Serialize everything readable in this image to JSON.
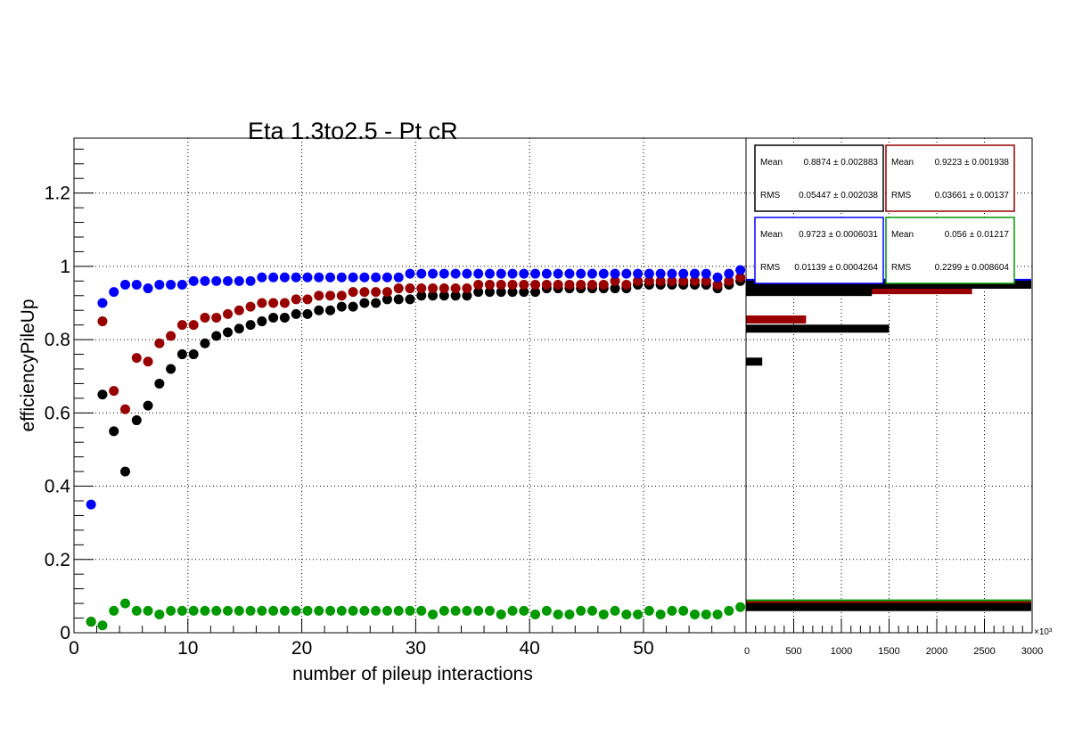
{
  "chart_data": [
    {
      "type": "scatter",
      "title": "Eta 1.3to2.5 - Pt cR",
      "xlabel": "number of pileup interactions",
      "ylabel": "efficiencyPileUp",
      "xlim": [
        0,
        59
      ],
      "ylim": [
        0,
        1.35
      ],
      "grid": true,
      "x_ticks": [
        "0",
        "10",
        "20",
        "30",
        "40",
        "50"
      ],
      "y_ticks": [
        "0",
        "0.2",
        "0.4",
        "0.6",
        "0.8",
        "1",
        "1.2"
      ],
      "colors": {
        "black": "#000000",
        "red": "#990000",
        "blue": "#0000ff",
        "green": "#009900"
      },
      "x": [
        1.5,
        2.5,
        3.5,
        4.5,
        5.5,
        6.5,
        7.5,
        8.5,
        9.5,
        10.5,
        11.5,
        12.5,
        13.5,
        14.5,
        15.5,
        16.5,
        17.5,
        18.5,
        19.5,
        20.5,
        21.5,
        22.5,
        23.5,
        24.5,
        25.5,
        26.5,
        27.5,
        28.5,
        29.5,
        30.5,
        31.5,
        32.5,
        33.5,
        34.5,
        35.5,
        36.5,
        37.5,
        38.5,
        39.5,
        40.5,
        41.5,
        42.5,
        43.5,
        44.5,
        45.5,
        46.5,
        47.5,
        48.5,
        49.5,
        50.5,
        51.5,
        52.5,
        53.5,
        54.5,
        55.5,
        56.5,
        57.5,
        58.5
      ],
      "series": [
        {
          "color": "#000000",
          "values": [
            0.03,
            0.65,
            0.55,
            0.44,
            0.58,
            0.62,
            0.68,
            0.72,
            0.76,
            0.76,
            0.79,
            0.81,
            0.82,
            0.83,
            0.84,
            0.85,
            0.86,
            0.86,
            0.87,
            0.87,
            0.88,
            0.88,
            0.89,
            0.89,
            0.9,
            0.9,
            0.91,
            0.91,
            0.91,
            0.92,
            0.92,
            0.92,
            0.92,
            0.92,
            0.93,
            0.93,
            0.93,
            0.93,
            0.93,
            0.93,
            0.94,
            0.94,
            0.94,
            0.94,
            0.94,
            0.94,
            0.94,
            0.94,
            0.95,
            0.95,
            0.95,
            0.95,
            0.95,
            0.95,
            0.95,
            0.94,
            0.95,
            0.96
          ]
        },
        {
          "color": "#990000",
          "values": [
            0.03,
            0.85,
            0.66,
            0.61,
            0.75,
            0.74,
            0.79,
            0.81,
            0.84,
            0.84,
            0.86,
            0.86,
            0.87,
            0.88,
            0.89,
            0.9,
            0.9,
            0.9,
            0.91,
            0.91,
            0.92,
            0.92,
            0.92,
            0.93,
            0.93,
            0.93,
            0.93,
            0.94,
            0.94,
            0.94,
            0.94,
            0.94,
            0.94,
            0.94,
            0.95,
            0.95,
            0.95,
            0.95,
            0.95,
            0.95,
            0.95,
            0.95,
            0.95,
            0.95,
            0.95,
            0.95,
            0.96,
            0.95,
            0.96,
            0.96,
            0.96,
            0.96,
            0.96,
            0.96,
            0.96,
            0.95,
            0.96,
            0.97
          ]
        },
        {
          "color": "#0000ff",
          "values": [
            0.35,
            0.9,
            0.93,
            0.95,
            0.95,
            0.94,
            0.95,
            0.95,
            0.95,
            0.96,
            0.96,
            0.96,
            0.96,
            0.96,
            0.96,
            0.97,
            0.97,
            0.97,
            0.97,
            0.97,
            0.97,
            0.97,
            0.97,
            0.97,
            0.97,
            0.97,
            0.97,
            0.97,
            0.98,
            0.98,
            0.98,
            0.98,
            0.98,
            0.98,
            0.98,
            0.98,
            0.98,
            0.98,
            0.98,
            0.98,
            0.98,
            0.98,
            0.98,
            0.98,
            0.98,
            0.98,
            0.98,
            0.98,
            0.98,
            0.98,
            0.98,
            0.98,
            0.98,
            0.98,
            0.98,
            0.97,
            0.98,
            0.99
          ]
        },
        {
          "color": "#009900",
          "values": [
            0.03,
            0.02,
            0.06,
            0.08,
            0.06,
            0.06,
            0.05,
            0.06,
            0.06,
            0.06,
            0.06,
            0.06,
            0.06,
            0.06,
            0.06,
            0.06,
            0.06,
            0.06,
            0.06,
            0.06,
            0.06,
            0.06,
            0.06,
            0.06,
            0.06,
            0.06,
            0.06,
            0.06,
            0.06,
            0.06,
            0.05,
            0.06,
            0.06,
            0.06,
            0.06,
            0.06,
            0.05,
            0.06,
            0.06,
            0.05,
            0.06,
            0.05,
            0.05,
            0.06,
            0.06,
            0.05,
            0.06,
            0.05,
            0.05,
            0.06,
            0.05,
            0.06,
            0.06,
            0.05,
            0.05,
            0.05,
            0.06,
            0.07
          ]
        }
      ]
    },
    {
      "type": "bar",
      "orientation": "horizontal",
      "xlim": [
        0,
        3000
      ],
      "x_ticks": [
        "500",
        "1000",
        "1500",
        "2000",
        "2500",
        "3000"
      ],
      "x_multiplier_label": "×10³",
      "ylim": [
        0,
        1.35
      ],
      "series": [
        {
          "color": "#000000",
          "bars": [
            {
              "y": 0.95,
              "value": 2990
            },
            {
              "y": 0.93,
              "value": 1320
            },
            {
              "y": 0.83,
              "value": 1500
            },
            {
              "y": 0.74,
              "value": 170
            },
            {
              "y": 0.07,
              "value": 2990
            }
          ],
          "stats": {
            "Mean": "0.8874 ± 0.002883",
            "RMS": "0.05447 ± 0.002038"
          }
        },
        {
          "color": "#990000",
          "bars": [
            {
              "y": 0.95,
              "value": 2990
            },
            {
              "y": 0.935,
              "value": 2370
            },
            {
              "y": 0.855,
              "value": 630
            },
            {
              "y": 0.075,
              "value": 2990
            }
          ],
          "stats": {
            "Mean": "0.9223 ± 0.001938",
            "RMS": "0.03661 ± 0.00137"
          }
        },
        {
          "color": "#0000ff",
          "bars": [
            {
              "y": 0.955,
              "value": 2990
            }
          ],
          "stats": {
            "Mean": "0.9723 ± 0.0006031",
            "RMS": "0.01139 ± 0.0004264"
          }
        },
        {
          "color": "#009900",
          "bars": [
            {
              "y": 0.08,
              "value": 2990
            }
          ],
          "stats": {
            "Mean": "0.056 ± 0.01217",
            "RMS": "0.2299 ± 0.008604"
          }
        }
      ]
    }
  ]
}
